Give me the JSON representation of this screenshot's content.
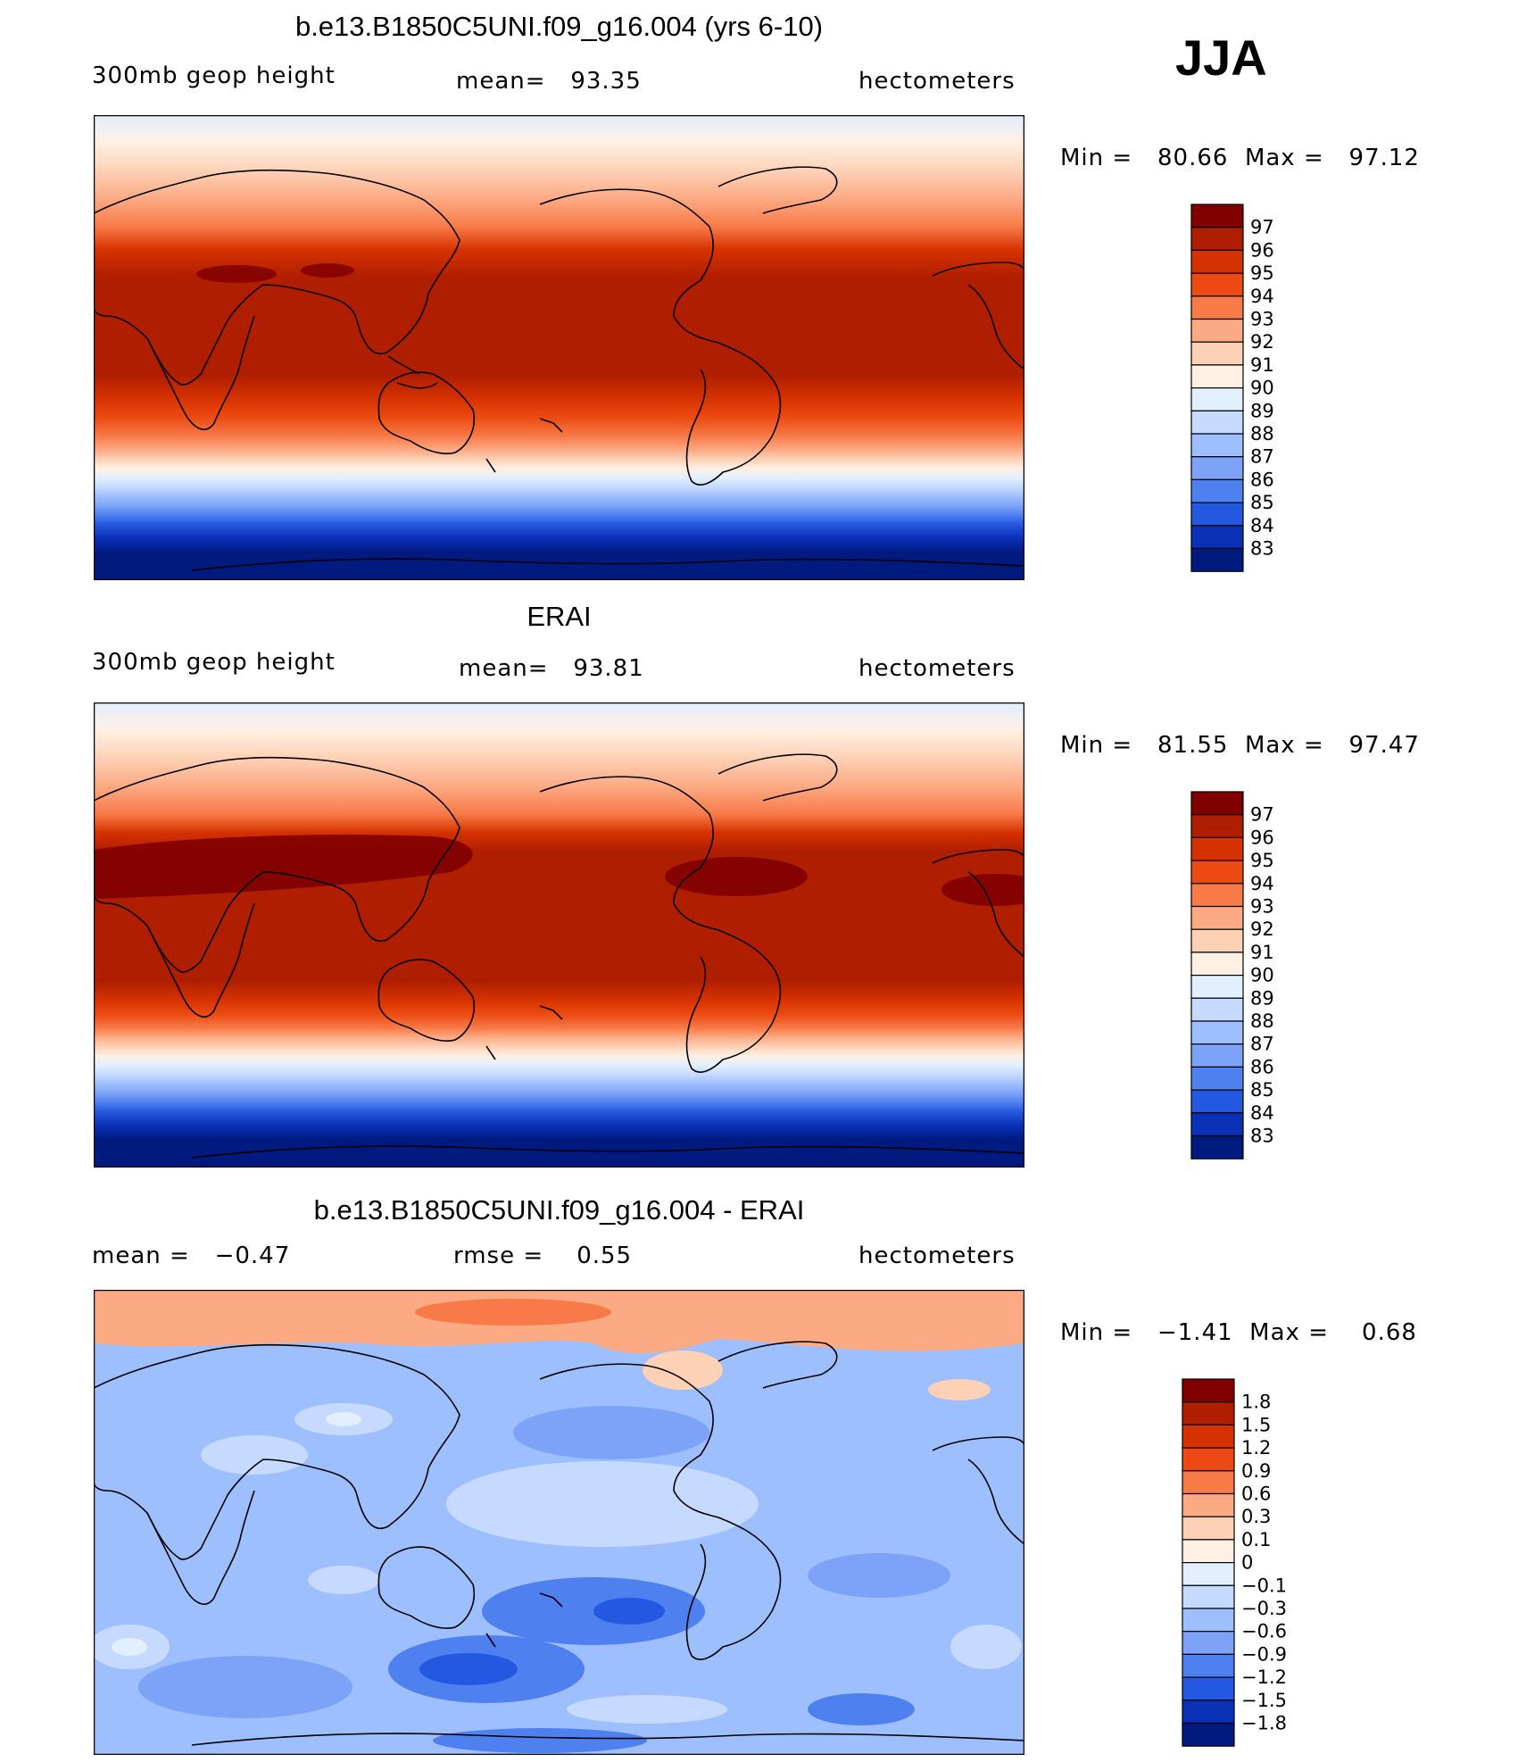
{
  "season": "JJA",
  "panels": [
    {
      "id": "model",
      "title": "b.e13.B1850C5UNI.f09_g16.004 (yrs 6-10)",
      "variable": "300mb geop height",
      "stat_left": "",
      "stat_mid": "mean=   93.35",
      "units": "hectometers",
      "minmax": "Min =   80.66  Max =   97.12",
      "colorbar_labels": [
        "97",
        "96",
        "95",
        "94",
        "93",
        "92",
        "91",
        "90",
        "89",
        "88",
        "87",
        "86",
        "85",
        "84",
        "83"
      ]
    },
    {
      "id": "obs",
      "title": "ERAI",
      "variable": "300mb geop height",
      "stat_left": "",
      "stat_mid": "mean=   93.81",
      "units": "hectometers",
      "minmax": "Min =   81.55  Max =   97.47",
      "colorbar_labels": [
        "97",
        "96",
        "95",
        "94",
        "93",
        "92",
        "91",
        "90",
        "89",
        "88",
        "87",
        "86",
        "85",
        "84",
        "83"
      ]
    },
    {
      "id": "diff",
      "title": "b.e13.B1850C5UNI.f09_g16.004 - ERAI",
      "variable": "",
      "stat_left": "mean =   −0.47",
      "stat_mid": "rmse =    0.55",
      "units": "hectometers",
      "minmax": "Min =   −1.41  Max =    0.68",
      "colorbar_labels": [
        "1.8",
        "1.5",
        "1.2",
        "0.9",
        "0.6",
        "0.3",
        "0.1",
        "0",
        "−0.1",
        "−0.3",
        "−0.6",
        "−0.9",
        "−1.2",
        "−1.5",
        "−1.8"
      ]
    }
  ],
  "colors": {
    "abs_scale": [
      "#800000",
      "#b01e00",
      "#d63200",
      "#ec4a12",
      "#f87a48",
      "#fcaa84",
      "#fdd1b6",
      "#fff0e3",
      "#e2efff",
      "#c6daff",
      "#9ebffd",
      "#7ca3f7",
      "#4f80f0",
      "#2558e0",
      "#0a30b6",
      "#001a80"
    ],
    "diff_scale": [
      "#800000",
      "#b01e00",
      "#d63200",
      "#ec4a12",
      "#f87a48",
      "#fcaa84",
      "#fdd1b6",
      "#fff0e3",
      "#e2efff",
      "#c6daff",
      "#9ebffd",
      "#7ca3f7",
      "#4f80f0",
      "#2558e0",
      "#0a30b6",
      "#001a80"
    ]
  }
}
